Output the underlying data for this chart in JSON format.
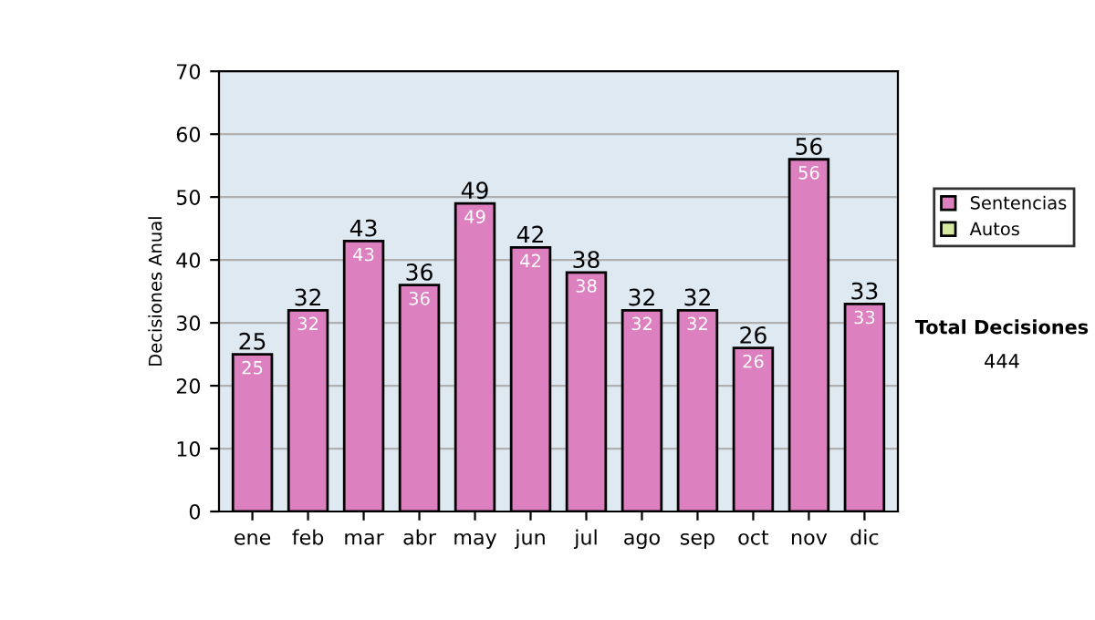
{
  "chart_data": {
    "type": "bar",
    "ylabel": "Decisiones Anual",
    "categories": [
      "ene",
      "feb",
      "mar",
      "abr",
      "may",
      "jun",
      "jul",
      "ago",
      "sep",
      "oct",
      "nov",
      "dic"
    ],
    "series": [
      {
        "name": "Sentencias",
        "color": "#dd80c0",
        "values": [
          25,
          32,
          43,
          36,
          49,
          42,
          38,
          32,
          32,
          26,
          56,
          33
        ]
      },
      {
        "name": "Autos",
        "color": "#d4eaa0",
        "values": [
          null,
          null,
          null,
          null,
          null,
          null,
          null,
          null,
          null,
          null,
          null,
          null
        ]
      }
    ],
    "ylim": [
      0,
      70
    ],
    "yticks": [
      0,
      10,
      20,
      30,
      40,
      50,
      60,
      70
    ],
    "stacked": true,
    "totals": [
      "25",
      "32",
      "43",
      "36",
      "49",
      "42",
      "38",
      "32",
      "32",
      "26",
      "56",
      "33"
    ],
    "grid": "y",
    "legend": "right",
    "data_labels": true,
    "annotations": [
      "Total Decisiones",
      "444"
    ]
  }
}
